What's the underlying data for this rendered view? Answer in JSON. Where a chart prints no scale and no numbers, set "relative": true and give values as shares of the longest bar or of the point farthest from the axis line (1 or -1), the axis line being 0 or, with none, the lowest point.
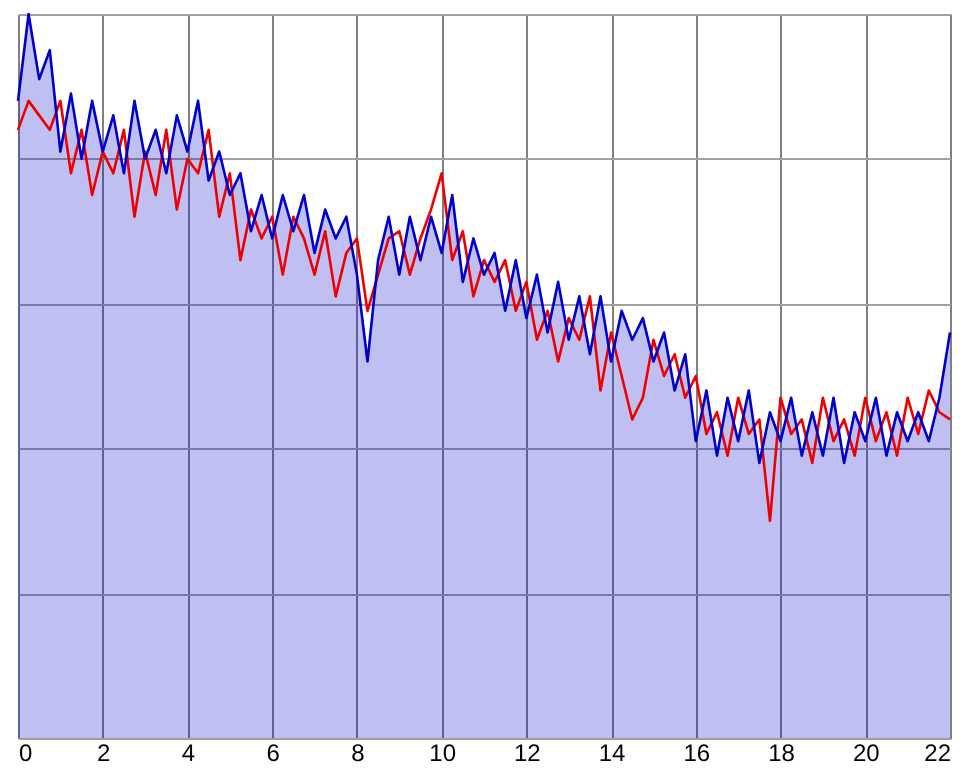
{
  "chart_data": {
    "type": "line",
    "relative": true,
    "grid": true,
    "xlim": [
      0,
      22
    ],
    "xticks": [
      0,
      2,
      4,
      6,
      8,
      10,
      12,
      14,
      16,
      18,
      20,
      22
    ],
    "x": [
      0,
      0.25,
      0.5,
      0.75,
      1,
      1.25,
      1.5,
      1.75,
      2,
      2.25,
      2.5,
      2.75,
      3,
      3.25,
      3.5,
      3.75,
      4,
      4.25,
      4.5,
      4.75,
      5,
      5.25,
      5.5,
      5.75,
      6,
      6.25,
      6.5,
      6.75,
      7,
      7.25,
      7.5,
      7.75,
      8,
      8.25,
      8.5,
      8.75,
      9,
      9.25,
      9.5,
      9.75,
      10,
      10.25,
      10.5,
      10.75,
      11,
      11.25,
      11.5,
      11.75,
      12,
      12.25,
      12.5,
      12.75,
      13,
      13.25,
      13.5,
      13.75,
      14,
      14.25,
      14.5,
      14.75,
      15,
      15.25,
      15.5,
      15.75,
      16,
      16.25,
      16.5,
      16.75,
      17,
      17.25,
      17.5,
      17.75,
      18,
      18.25,
      18.5,
      18.75,
      19,
      19.25,
      19.5,
      19.75,
      20,
      20.25,
      20.5,
      20.75,
      21,
      21.25,
      21.5,
      21.75,
      22
    ],
    "series": [
      {
        "type": "area",
        "color": "#0000cc",
        "values": [
          0.88,
          1.0,
          0.91,
          0.95,
          0.81,
          0.89,
          0.8,
          0.88,
          0.81,
          0.86,
          0.78,
          0.88,
          0.8,
          0.84,
          0.78,
          0.86,
          0.81,
          0.88,
          0.77,
          0.81,
          0.75,
          0.78,
          0.7,
          0.75,
          0.69,
          0.75,
          0.7,
          0.75,
          0.67,
          0.73,
          0.69,
          0.72,
          0.64,
          0.52,
          0.66,
          0.72,
          0.64,
          0.72,
          0.66,
          0.72,
          0.67,
          0.75,
          0.63,
          0.69,
          0.64,
          0.67,
          0.59,
          0.66,
          0.58,
          0.64,
          0.56,
          0.63,
          0.55,
          0.61,
          0.53,
          0.61,
          0.52,
          0.59,
          0.55,
          0.58,
          0.52,
          0.56,
          0.48,
          0.53,
          0.41,
          0.48,
          0.39,
          0.47,
          0.41,
          0.48,
          0.38,
          0.45,
          0.41,
          0.47,
          0.39,
          0.45,
          0.39,
          0.47,
          0.38,
          0.45,
          0.41,
          0.47,
          0.39,
          0.45,
          0.41,
          0.45,
          0.41,
          0.47,
          0.56
        ]
      },
      {
        "color": "#ee0000",
        "values": [
          0.84,
          0.88,
          0.86,
          0.84,
          0.88,
          0.78,
          0.84,
          0.75,
          0.81,
          0.78,
          0.84,
          0.72,
          0.81,
          0.75,
          0.84,
          0.73,
          0.8,
          0.78,
          0.84,
          0.72,
          0.78,
          0.66,
          0.73,
          0.69,
          0.72,
          0.64,
          0.72,
          0.69,
          0.64,
          0.7,
          0.61,
          0.67,
          0.69,
          0.59,
          0.64,
          0.69,
          0.7,
          0.64,
          0.69,
          0.73,
          0.78,
          0.66,
          0.7,
          0.61,
          0.66,
          0.63,
          0.66,
          0.59,
          0.63,
          0.55,
          0.59,
          0.52,
          0.58,
          0.55,
          0.61,
          0.48,
          0.56,
          0.5,
          0.44,
          0.47,
          0.55,
          0.5,
          0.53,
          0.47,
          0.5,
          0.42,
          0.45,
          0.39,
          0.47,
          0.42,
          0.44,
          0.3,
          0.47,
          0.42,
          0.44,
          0.38,
          0.47,
          0.41,
          0.44,
          0.39,
          0.47,
          0.41,
          0.45,
          0.39,
          0.47,
          0.42,
          0.48,
          0.45,
          0.44
        ]
      }
    ]
  }
}
